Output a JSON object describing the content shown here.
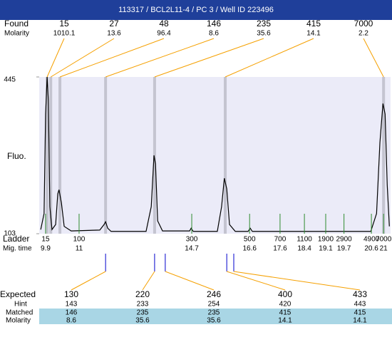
{
  "header": {
    "title": "113317 / BCL2L11-4 / PC 3 / Well ID 223496"
  },
  "found": {
    "label": "Found",
    "molarity_label": "Molarity",
    "peaks": [
      {
        "size": 15,
        "molarity": 1010.1,
        "time": 9.95
      },
      {
        "size": 27,
        "molarity": 13.6,
        "time": 10.07
      },
      {
        "size": 48,
        "molarity": 96.4,
        "time": 10.37
      },
      {
        "size": 146,
        "molarity": 8.6,
        "time": 11.87
      },
      {
        "size": 235,
        "molarity": 35.6,
        "time": 13.48
      },
      {
        "size": 415,
        "molarity": 14.1,
        "time": 15.8
      },
      {
        "size": 7000,
        "molarity": 2.2,
        "time": 21
      }
    ]
  },
  "chart_data": {
    "type": "line",
    "y_label": "Fluo.",
    "xlim": [
      9.69,
      21.23
    ],
    "ylim": [
      103,
      445
    ],
    "yticks": [
      445,
      103
    ],
    "background": "#ebebf8",
    "band_color": "#c4c4d0",
    "x": [
      9.74,
      9.85,
      9.9,
      9.95,
      9.99,
      10.04,
      10.11,
      10.23,
      10.3,
      10.34,
      10.42,
      10.51,
      10.74,
      11.68,
      11.82,
      11.87,
      11.94,
      12.05,
      13.2,
      13.37,
      13.46,
      13.51,
      13.58,
      13.74,
      14.63,
      14.68,
      14.75,
      15.54,
      15.68,
      15.77,
      15.85,
      15.94,
      16.13,
      16.55,
      16.62,
      16.69,
      20.58,
      20.77,
      20.88,
      20.98,
      21.05,
      21.12,
      21.19
    ],
    "series": [
      {
        "color": "#000000",
        "values": [
          112,
          147,
          364,
          445,
          395,
          162,
          112,
          123,
          190,
          199,
          170,
          119,
          109,
          111,
          123,
          129,
          115,
          108,
          108,
          162,
          274,
          255,
          131,
          109,
          109,
          115,
          108,
          108,
          162,
          224,
          201,
          123,
          108,
          108,
          115,
          108,
          108,
          147,
          302,
          387,
          364,
          209,
          119
        ]
      }
    ]
  },
  "ladder": {
    "label": "Ladder",
    "time_label": "Mig. time",
    "sizes": [
      15,
      100,
      300,
      500,
      700,
      1100,
      1900,
      2900,
      4900,
      7000
    ],
    "times": [
      9.9,
      11,
      14.7,
      16.6,
      17.6,
      18.4,
      19.1,
      19.7,
      20.6,
      21
    ]
  },
  "expected": {
    "label": "Expected",
    "hint_label": "Hint",
    "matched_label": "Matched",
    "molarity_label": "Molarity",
    "peaks": [
      {
        "size": 130,
        "hint": 143,
        "matched": 146,
        "molarity": 8.6,
        "time": 11.87
      },
      {
        "size": 220,
        "hint": 233,
        "matched": 235,
        "molarity": 35.6,
        "time": 13.48
      },
      {
        "size": 246,
        "hint": 254,
        "matched": 235,
        "molarity": 35.6,
        "time": 13.83
      },
      {
        "size": 400,
        "hint": 420,
        "matched": 415,
        "molarity": 14.1,
        "time": 15.85
      },
      {
        "size": 433,
        "hint": 443,
        "matched": 415,
        "molarity": 14.1,
        "time": 16.08
      }
    ]
  }
}
